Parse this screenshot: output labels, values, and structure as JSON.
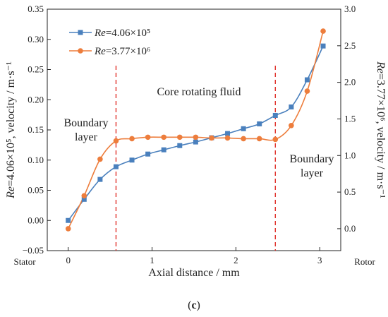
{
  "chart_data": {
    "type": "line",
    "xlabel": "Axial distance / mm",
    "xlim": [
      -0.25,
      3.25
    ],
    "xticks": [
      0,
      1,
      2,
      3
    ],
    "y_left": {
      "label": "Re=4.06×10⁵,  velocity / m·s⁻¹",
      "label_italic": "Re",
      "label_rest": "=4.06×10⁵,  velocity / m·s⁻¹",
      "lim": [
        -0.05,
        0.35
      ],
      "ticks": [
        "−0.05",
        "0.00",
        "0.05",
        "0.10",
        "0.15",
        "0.20",
        "0.25",
        "0.30",
        "0.35"
      ],
      "tick_values": [
        -0.05,
        0,
        0.05,
        0.1,
        0.15,
        0.2,
        0.25,
        0.3,
        0.35
      ]
    },
    "y_right": {
      "label": "Re=3.77×10⁶,  velocity / m·s⁻¹",
      "label_italic": "Re",
      "label_rest": "=3.77×10⁶,  velocity / m·s⁻¹",
      "lim": [
        -0.3,
        3.0
      ],
      "ticks": [
        "0.0",
        "0.5",
        "1.0",
        "1.5",
        "2.0",
        "2.5",
        "3.0"
      ],
      "tick_values": [
        0,
        0.5,
        1,
        1.5,
        2,
        2.5,
        3
      ]
    },
    "series": [
      {
        "name": "Re=4.06×10⁵",
        "name_italic": "Re",
        "name_rest": "=4.06×10⁵",
        "axis": "left",
        "color": "#4a80bd",
        "marker": "square",
        "x": [
          0.0,
          0.19,
          0.38,
          0.57,
          0.76,
          0.95,
          1.14,
          1.33,
          1.52,
          1.71,
          1.9,
          2.09,
          2.28,
          2.47,
          2.66,
          2.85,
          3.04
        ],
        "values": [
          0.0,
          0.035,
          0.068,
          0.089,
          0.1,
          0.11,
          0.117,
          0.124,
          0.13,
          0.137,
          0.144,
          0.152,
          0.16,
          0.174,
          0.188,
          0.233,
          0.289
        ]
      },
      {
        "name": "Re=3.77×10⁶",
        "name_italic": "Re",
        "name_rest": "=3.77×10⁶",
        "axis": "right",
        "color": "#ed7d3c",
        "marker": "circle",
        "x": [
          0.0,
          0.19,
          0.38,
          0.57,
          0.76,
          0.95,
          1.14,
          1.33,
          1.52,
          1.71,
          1.9,
          2.09,
          2.28,
          2.47,
          2.66,
          2.85,
          3.04
        ],
        "values": [
          0.0,
          0.45,
          0.95,
          1.2,
          1.23,
          1.25,
          1.25,
          1.25,
          1.25,
          1.24,
          1.24,
          1.23,
          1.23,
          1.22,
          1.41,
          1.88,
          2.7
        ]
      }
    ],
    "dividers": [
      0.57,
      2.47
    ],
    "divider_color": "#e0302a",
    "annotations": {
      "core": "Core rotating fluid",
      "boundary_left_1": "Boundary",
      "boundary_left_2": "layer",
      "boundary_right_1": "Boundary",
      "boundary_right_2": "layer",
      "stator": "Stator",
      "rotor": "Rotor"
    },
    "legend_position": "top-left",
    "grid": false,
    "panel_label": "(c)",
    "panel_label_open": "(",
    "panel_label_letter": "c",
    "panel_label_close": ")"
  }
}
